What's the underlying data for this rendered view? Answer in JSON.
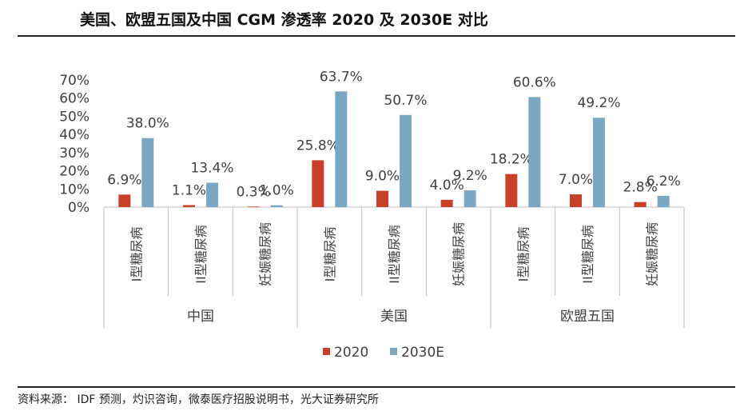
{
  "header": {
    "title": "美国、欧盟五国及中国 CGM 渗透率 2020 及 2030E 对比"
  },
  "footer": {
    "source": "资料来源：  IDF 预测，灼识咨询，微泰医疗招股说明书，光大证券研究所"
  },
  "chart_data": {
    "type": "bar",
    "ylim": [
      0,
      70
    ],
    "yticks": [
      "0%",
      "10%",
      "20%",
      "30%",
      "40%",
      "50%",
      "60%",
      "70%"
    ],
    "groups": [
      "中国",
      "美国",
      "欧盟五国"
    ],
    "categories": [
      "I型糖尿病",
      "II型糖尿病",
      "妊娠糖尿病",
      "I型糖尿病",
      "II型糖尿病",
      "妊娠糖尿病",
      "I型糖尿病",
      "II型糖尿病",
      "妊娠糖尿病"
    ],
    "series": [
      {
        "name": "2020",
        "color": "#C8402A",
        "values": [
          6.9,
          1.1,
          0.3,
          25.8,
          9.0,
          4.0,
          18.2,
          7.0,
          2.8
        ],
        "labels": [
          "6.9%",
          "1.1%",
          "0.3%",
          "25.8%",
          "9.0%",
          "4.0%",
          "18.2%",
          "7.0%",
          "2.8%"
        ]
      },
      {
        "name": "2030E",
        "color": "#7BA7C4",
        "values": [
          38.0,
          13.4,
          1.0,
          63.7,
          50.7,
          9.2,
          60.6,
          49.2,
          6.2
        ],
        "labels": [
          "38.0%",
          "13.4%",
          "1.0%",
          "63.7%",
          "50.7%",
          "9.2%",
          "60.6%",
          "49.2%",
          "6.2%"
        ]
      }
    ],
    "legend_position": "bottom",
    "grid": false
  }
}
